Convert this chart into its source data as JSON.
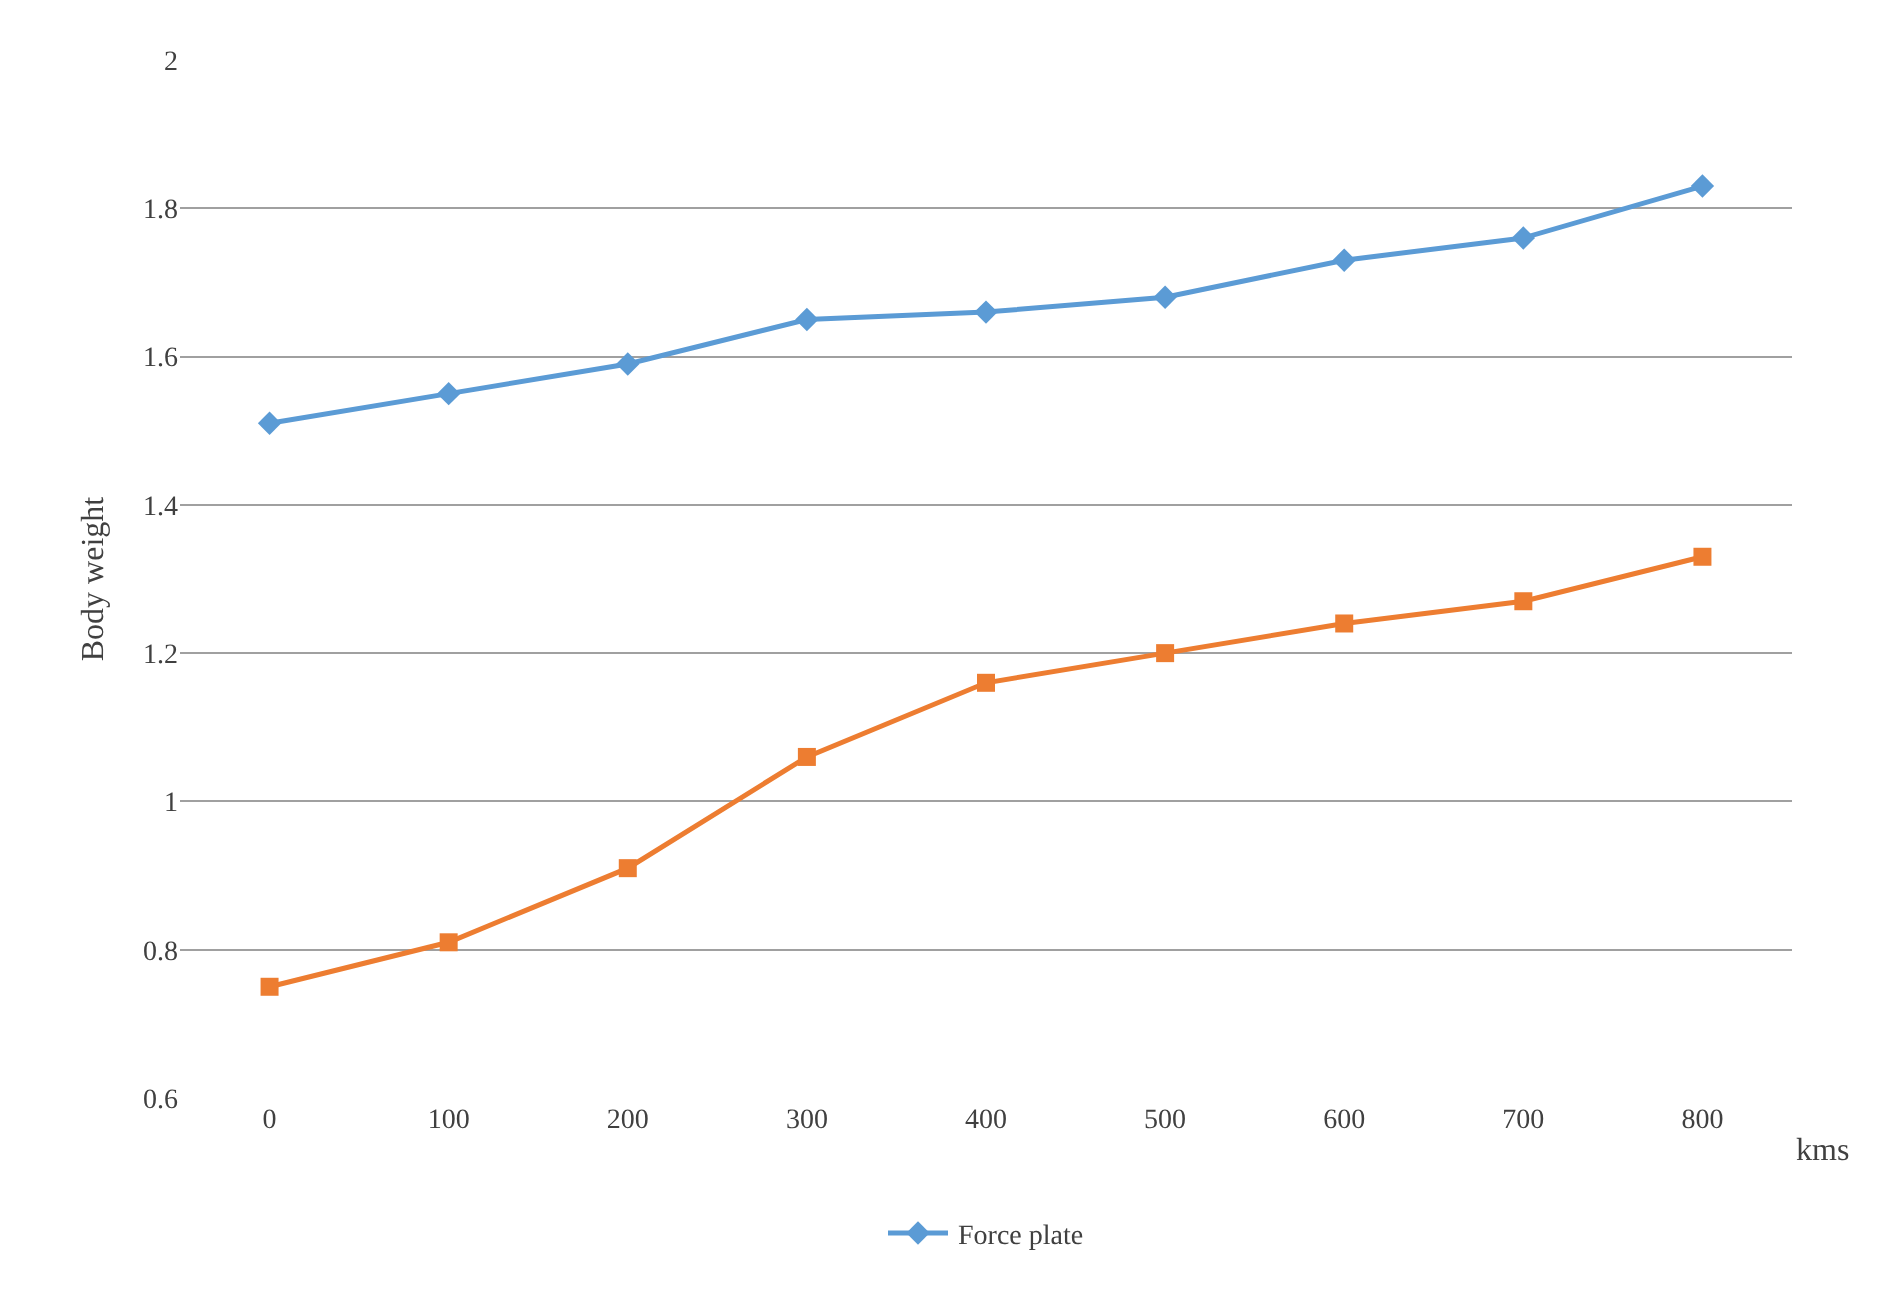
{
  "chart_data": {
    "type": "line",
    "ylabel": "Body weight",
    "xlabel": "kms",
    "categories": [
      "0",
      "100",
      "200",
      "300",
      "400",
      "500",
      "600",
      "700",
      "800"
    ],
    "series": [
      {
        "name": "Force plate",
        "color": "#5b9bd5",
        "marker": "diamond",
        "values": [
          1.51,
          1.55,
          1.59,
          1.65,
          1.66,
          1.68,
          1.73,
          1.76,
          1.83
        ]
      },
      {
        "color": "#ed7d31",
        "marker": "square",
        "values": [
          0.75,
          0.81,
          0.91,
          1.06,
          1.16,
          1.2,
          1.24,
          1.27,
          1.33
        ]
      }
    ],
    "ylim": [
      0.6,
      2
    ],
    "yticks": [
      0.6,
      0.8,
      1,
      1.2,
      1.4,
      1.6,
      1.8,
      2
    ],
    "grid": "y",
    "legend": "bottom",
    "line_style": "solid"
  }
}
